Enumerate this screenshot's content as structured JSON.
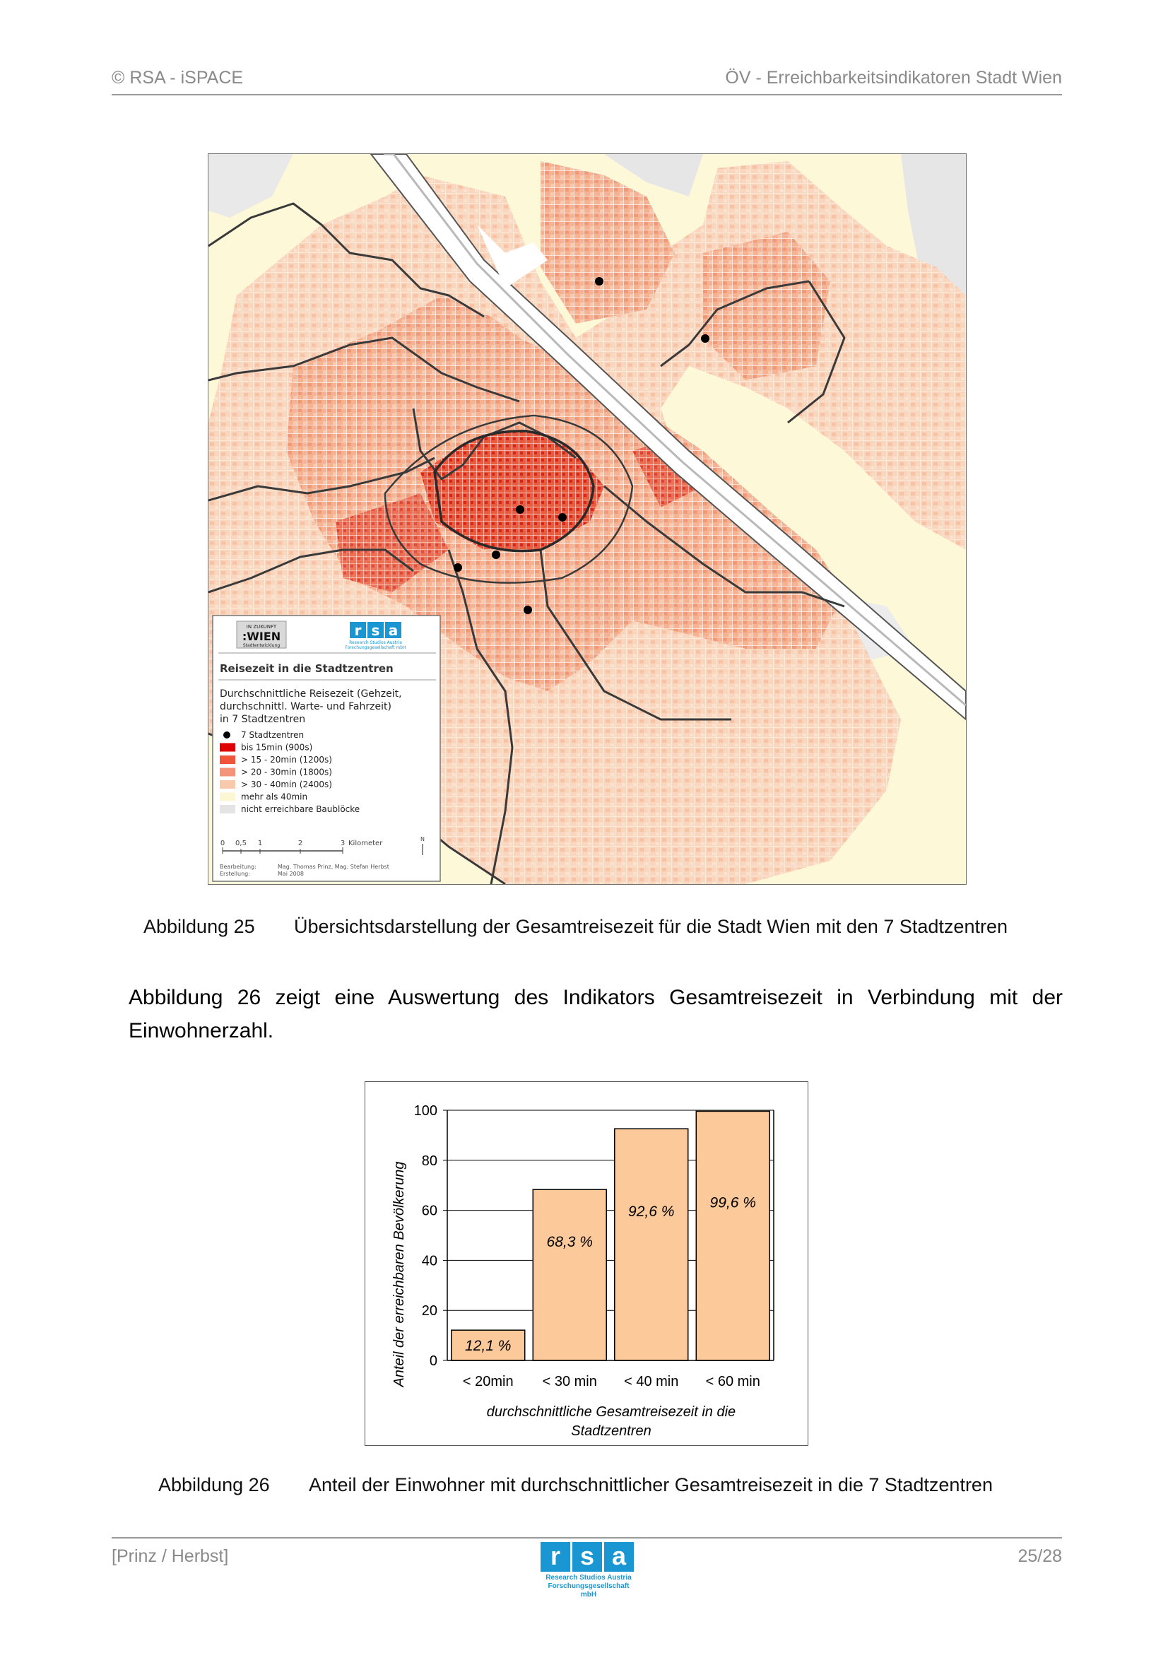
{
  "header": {
    "left": "© RSA - iSPACE",
    "right": "ÖV - Erreichbarkeitsindikatoren Stadt Wien"
  },
  "map": {
    "brand_top": "IN ZUKUNFT",
    "brand_main": ":WIEN",
    "brand_sub": "Stadtentwicklung",
    "rsa_logo_sub": "Research Studios Austria",
    "rsa_logo_sub2": "Forschungsgesellschaft mbH",
    "legend_title": "Reisezeit in die Stadtzentren",
    "legend_desc_1": "Durchschnittliche Reisezeit (Gehzeit,",
    "legend_desc_2": "durchschnittl. Warte- und Fahrzeit)",
    "legend_desc_3": "in 7 Stadtzentren",
    "legend_items": [
      {
        "label": "7 Stadtzentren",
        "color": "#000000"
      },
      {
        "label": "bis 15min   (900s)",
        "color": "#e00000"
      },
      {
        "label": "> 15 - 20min (1200s)",
        "color": "#f0553a"
      },
      {
        "label": "> 20 - 30min (1800s)",
        "color": "#f5937a"
      },
      {
        "label": "> 30 - 40min (2400s)",
        "color": "#f9c9ad"
      },
      {
        "label": "mehr als 40min",
        "color": "#fdf6d2"
      },
      {
        "label": "nicht erreichbare Baublöcke",
        "color": "#e4e4e4"
      }
    ],
    "scale_labels": [
      "0",
      "0,5",
      "1",
      "2",
      "3"
    ],
    "scale_unit": "Kilometer",
    "north": "N",
    "credit_label_1": "Bearbeitung:",
    "credit_value_1": "Mag. Thomas Prinz, Mag. Stefan Herbst",
    "credit_label_2": "Erstellung:",
    "credit_value_2": "Mai 2008"
  },
  "figure25": {
    "number": "Abbildung 25",
    "caption": "Übersichtsdarstellung der Gesamtreisezeit für die Stadt Wien mit den 7 Stadtzentren"
  },
  "paragraph": "Abbildung 26 zeigt eine Auswertung des Indikators Gesamtreisezeit in Verbindung mit der Einwohnerzahl.",
  "chart_data": {
    "type": "bar",
    "categories": [
      "< 20min",
      "< 30 min",
      "< 40 min",
      "< 60 min"
    ],
    "values": [
      12.1,
      68.3,
      92.6,
      99.6
    ],
    "data_labels": [
      "12,1 %",
      "68,3 %",
      "92,6 %",
      "99,6 %"
    ],
    "ylabel": "Anteil der erreichbaren Bevölkerung",
    "xlabel_1": "durchschnittliche Gesamtreisezeit in die",
    "xlabel_2": "Stadtzentren",
    "ylim": [
      0,
      100
    ],
    "yticks": [
      0,
      20,
      40,
      60,
      80,
      100
    ],
    "bar_color": "#fcc99a",
    "grid": true
  },
  "figure26": {
    "number": "Abbildung 26",
    "caption": "Anteil der Einwohner mit durchschnittlicher Gesamtreisezeit in die 7 Stadtzentren"
  },
  "footer": {
    "left": "[Prinz / Herbst]",
    "right": "25/28",
    "logo_letters": [
      "r",
      "s",
      "a"
    ],
    "logo_sub_1": "Research Studios Austria",
    "logo_sub_2": "Forschungsgesellschaft mbH"
  }
}
